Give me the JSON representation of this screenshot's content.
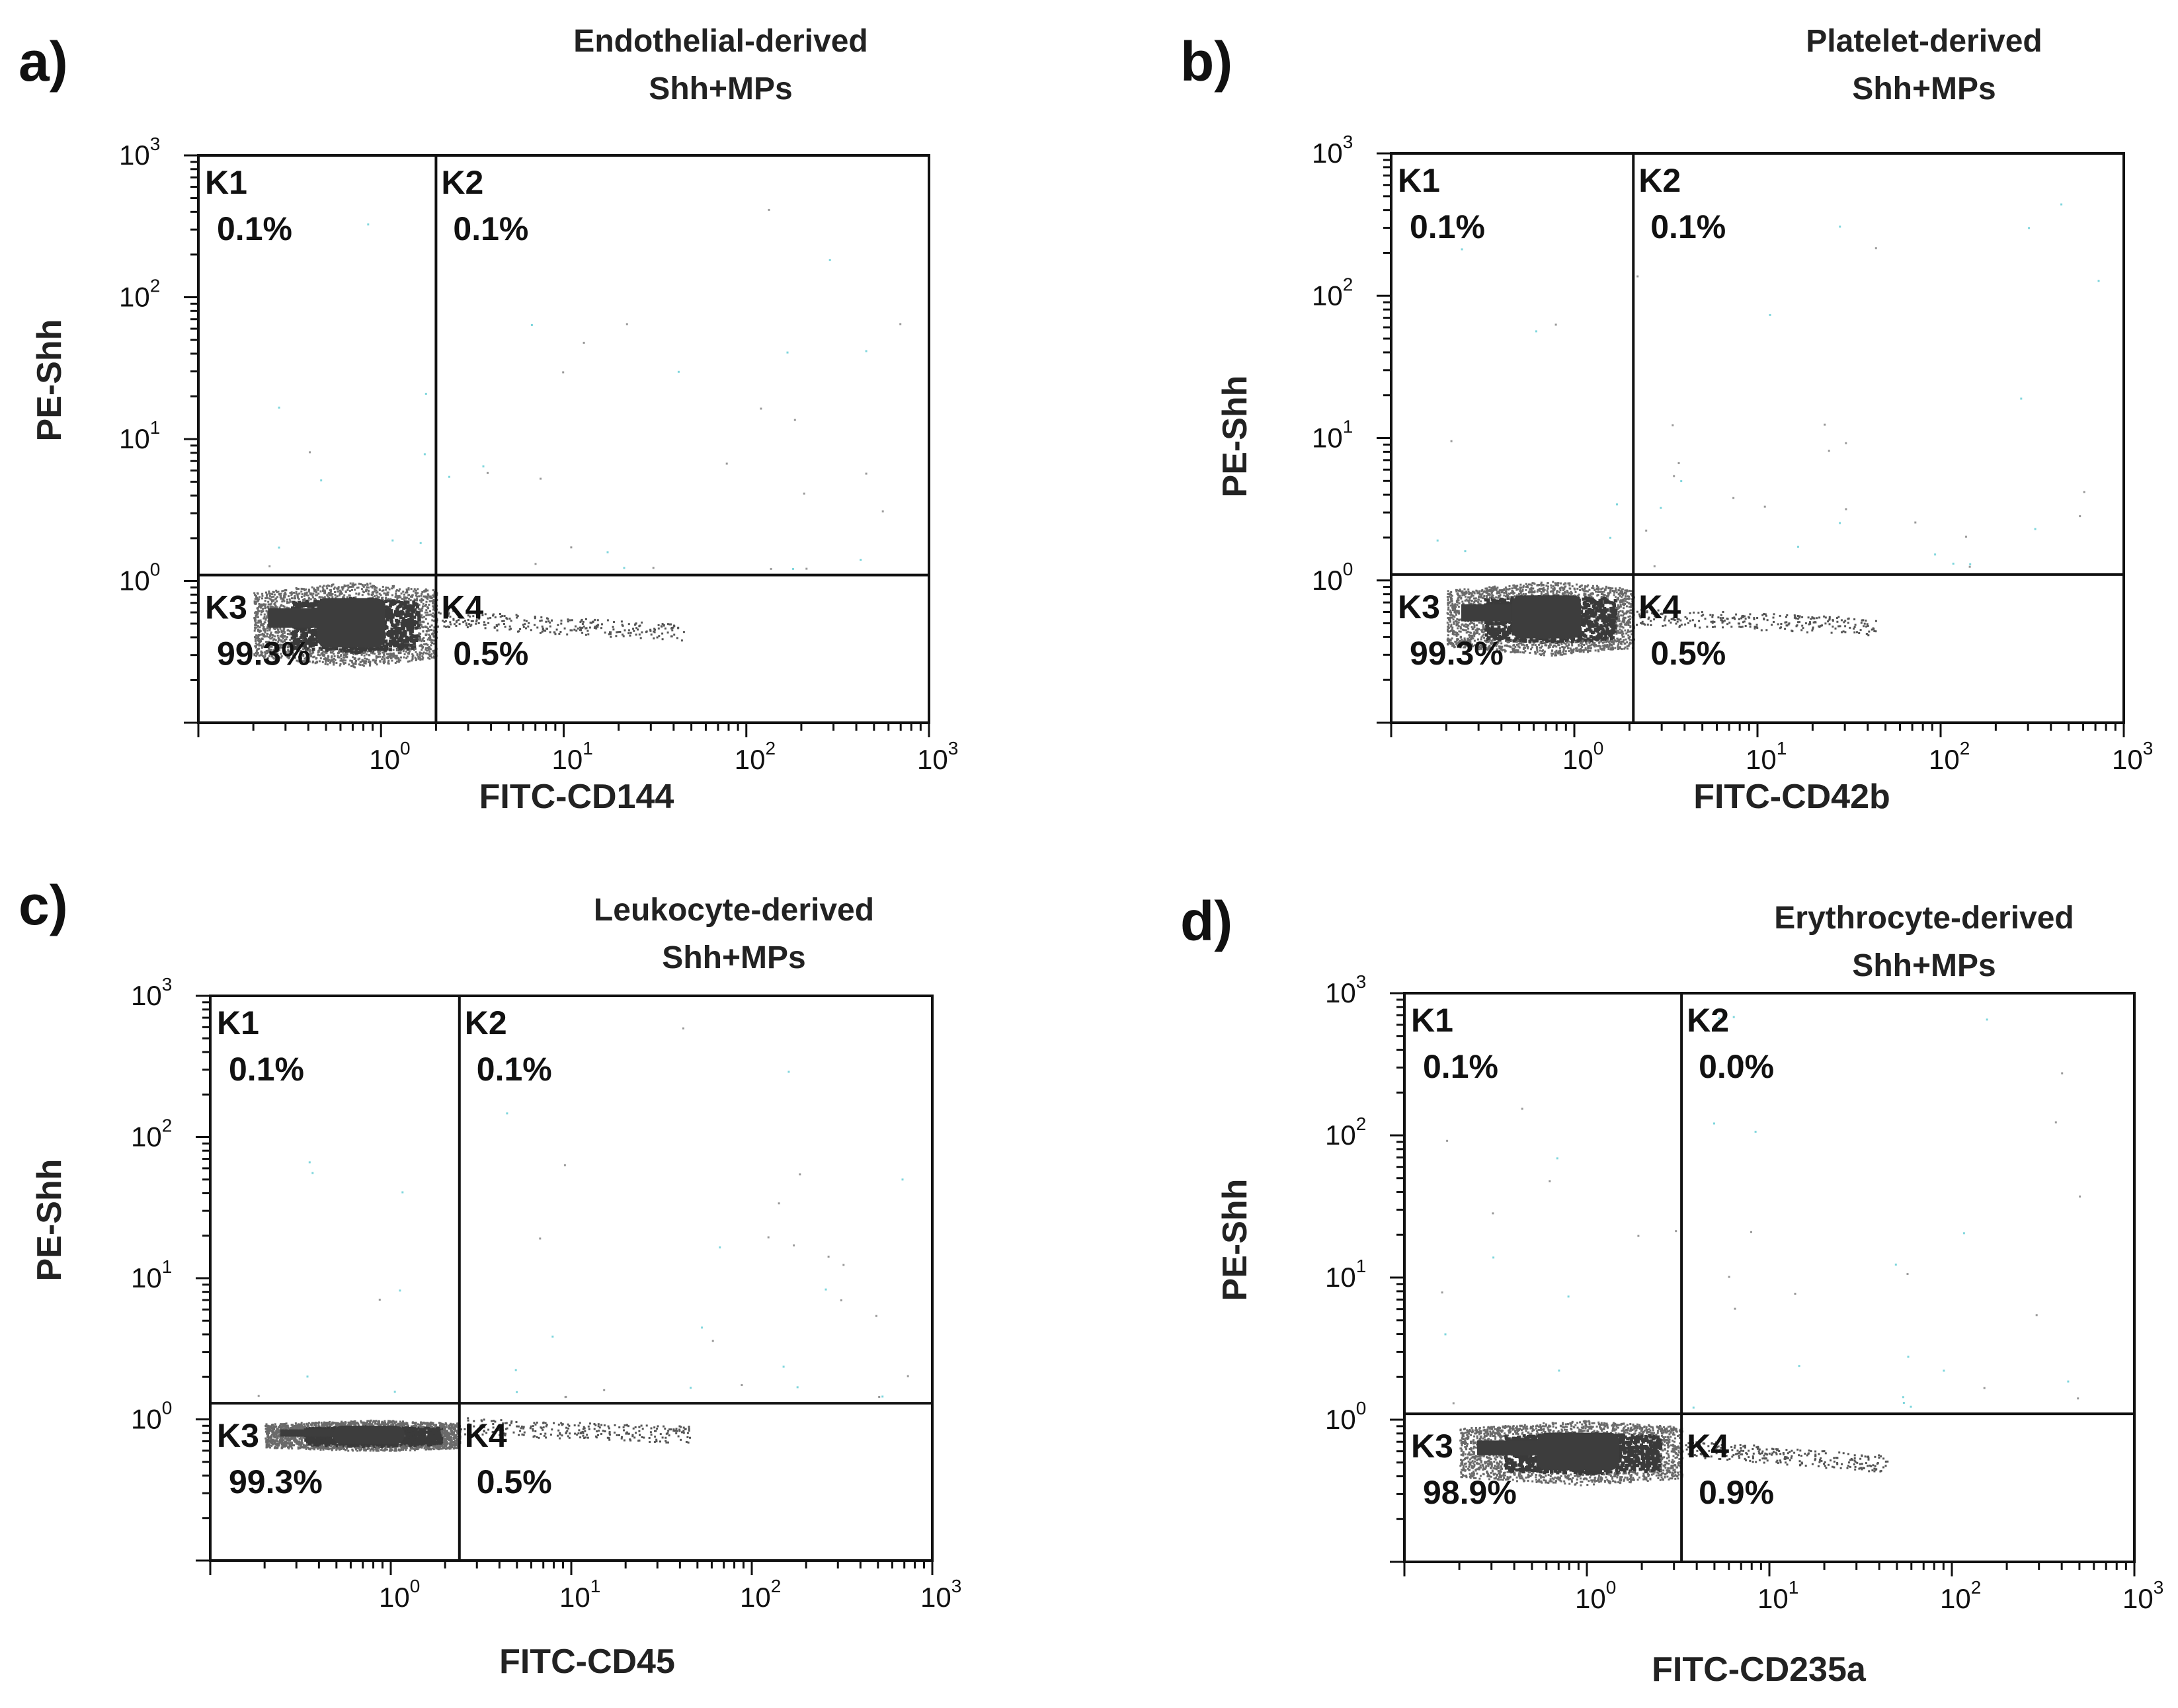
{
  "chart_data": [
    {
      "type": "scatter",
      "panel_label": "a)",
      "title_lines": [
        "Endothelial-derived",
        "Shh+MPs"
      ],
      "xlabel": "FITC-CD144",
      "ylabel": "PE-Shh",
      "x_scale": "log",
      "y_scale": "log",
      "xlim": [
        0.1,
        1000
      ],
      "ylim": [
        0.1,
        1000
      ],
      "x_ticks": [
        "10^0",
        "10^1",
        "10^2",
        "10^3"
      ],
      "y_ticks": [
        "10^0",
        "10^1",
        "10^2",
        "10^3"
      ],
      "gate": {
        "x": 2.0,
        "y": 1.1
      },
      "quadrants": [
        {
          "name": "K1",
          "percent": "0.1%"
        },
        {
          "name": "K2",
          "percent": "0.1%"
        },
        {
          "name": "K3",
          "percent": "99.3%"
        },
        {
          "name": "K4",
          "percent": "0.5%"
        }
      ],
      "main_population": {
        "x_range": [
          0.2,
          2.0
        ],
        "y_range": [
          0.25,
          1.0
        ]
      },
      "tail_population": {
        "x_range": [
          2.0,
          45
        ],
        "y_range": [
          0.4,
          0.6
        ]
      }
    },
    {
      "type": "scatter",
      "panel_label": "b)",
      "title_lines": [
        "Platelet-derived",
        "Shh+MPs"
      ],
      "xlabel": "FITC-CD42b",
      "ylabel": "PE-Shh",
      "x_scale": "log",
      "y_scale": "log",
      "xlim": [
        0.1,
        1000
      ],
      "ylim": [
        0.1,
        1000
      ],
      "x_ticks": [
        "10^0",
        "10^1",
        "10^2",
        "10^3"
      ],
      "y_ticks": [
        "10^0",
        "10^1",
        "10^2",
        "10^3"
      ],
      "gate": {
        "x": 2.1,
        "y": 1.1
      },
      "quadrants": [
        {
          "name": "K1",
          "percent": "0.1%"
        },
        {
          "name": "K2",
          "percent": "0.1%"
        },
        {
          "name": "K3",
          "percent": "99.3%"
        },
        {
          "name": "K4",
          "percent": "0.5%"
        }
      ],
      "main_population": {
        "x_range": [
          0.2,
          2.1
        ],
        "y_range": [
          0.3,
          1.0
        ]
      },
      "tail_population": {
        "x_range": [
          2.1,
          45
        ],
        "y_range": [
          0.45,
          0.6
        ]
      }
    },
    {
      "type": "scatter",
      "panel_label": "c)",
      "title_lines": [
        "Leukocyte-derived",
        "Shh+MPs"
      ],
      "xlabel": "FITC-CD45",
      "ylabel": "PE-Shh",
      "x_scale": "log",
      "y_scale": "log",
      "xlim": [
        0.1,
        1000
      ],
      "ylim": [
        0.1,
        1000
      ],
      "x_ticks": [
        "10^0",
        "10^1",
        "10^2",
        "10^3"
      ],
      "y_ticks": [
        "10^0",
        "10^1",
        "10^2",
        "10^3"
      ],
      "gate": {
        "x": 2.4,
        "y": 1.3
      },
      "quadrants": [
        {
          "name": "K1",
          "percent": "0.1%"
        },
        {
          "name": "K2",
          "percent": "0.1%"
        },
        {
          "name": "K3",
          "percent": "99.3%"
        },
        {
          "name": "K4",
          "percent": "0.5%"
        }
      ],
      "main_population": {
        "x_range": [
          0.2,
          2.4
        ],
        "y_range": [
          0.6,
          1.0
        ]
      },
      "tail_population": {
        "x_range": [
          2.4,
          45
        ],
        "y_range": [
          0.75,
          0.95
        ]
      }
    },
    {
      "type": "scatter",
      "panel_label": "d)",
      "title_lines": [
        "Erythrocyte-derived",
        "Shh+MPs"
      ],
      "xlabel": "FITC-CD235a",
      "ylabel": "PE-Shh",
      "x_scale": "log",
      "y_scale": "log",
      "xlim": [
        0.1,
        1000
      ],
      "ylim": [
        0.1,
        1000
      ],
      "x_ticks": [
        "10^0",
        "10^1",
        "10^2",
        "10^3"
      ],
      "y_ticks": [
        "10^0",
        "10^1",
        "10^2",
        "10^3"
      ],
      "gate": {
        "x": 3.3,
        "y": 1.1
      },
      "quadrants": [
        {
          "name": "K1",
          "percent": "0.1%"
        },
        {
          "name": "K2",
          "percent": "0.0%"
        },
        {
          "name": "K3",
          "percent": "98.9%"
        },
        {
          "name": "K4",
          "percent": "0.9%"
        }
      ],
      "main_population": {
        "x_range": [
          0.2,
          3.3
        ],
        "y_range": [
          0.35,
          1.0
        ]
      },
      "tail_population": {
        "x_range": [
          3.3,
          45
        ],
        "y_range": [
          0.45,
          0.7
        ]
      }
    }
  ]
}
